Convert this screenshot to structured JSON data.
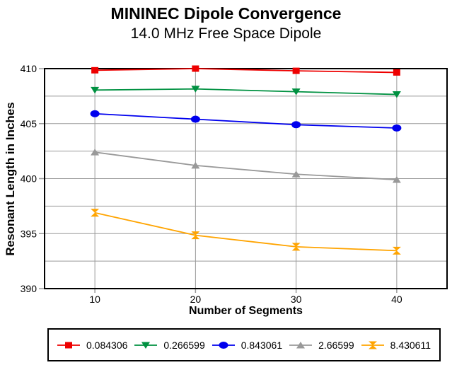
{
  "header": {
    "title": "MININEC Dipole Convergence",
    "subtitle": "14.0 MHz Free Space Dipole"
  },
  "chart_data": {
    "type": "line",
    "title": "MININEC Dipole Convergence",
    "subtitle": "14.0 MHz Free Space Dipole",
    "xlabel": "Number of Segments",
    "ylabel": "Resonant Length in Inches",
    "x": [
      10,
      20,
      30,
      40
    ],
    "xlim": [
      5,
      45
    ],
    "ylim": [
      390,
      410
    ],
    "y_major_ticks": [
      410,
      405,
      400,
      395,
      390
    ],
    "y_minor_step": 2.5,
    "grid": true,
    "legend_position": "bottom",
    "series": [
      {
        "name": "0.084306",
        "color": "#ee0000",
        "marker": "square",
        "values": [
          409.85,
          410.0,
          409.8,
          409.65
        ]
      },
      {
        "name": "0.266599",
        "color": "#009141",
        "marker": "triangle-down",
        "values": [
          408.05,
          408.15,
          407.9,
          407.65
        ]
      },
      {
        "name": "0.843061",
        "color": "#0000ee",
        "marker": "circle",
        "values": [
          405.9,
          405.4,
          404.9,
          404.6
        ]
      },
      {
        "name": "2.66599",
        "color": "#999999",
        "marker": "triangle-up",
        "values": [
          402.4,
          401.2,
          400.4,
          399.9
        ]
      },
      {
        "name": "8.430611",
        "color": "#ffa400",
        "marker": "hourglass",
        "values": [
          396.9,
          394.85,
          393.8,
          393.45
        ]
      }
    ]
  },
  "colors": {
    "background": "#ffffff",
    "grid": "#9a9a9a",
    "axis": "#000000",
    "tick_label": "#000000"
  }
}
